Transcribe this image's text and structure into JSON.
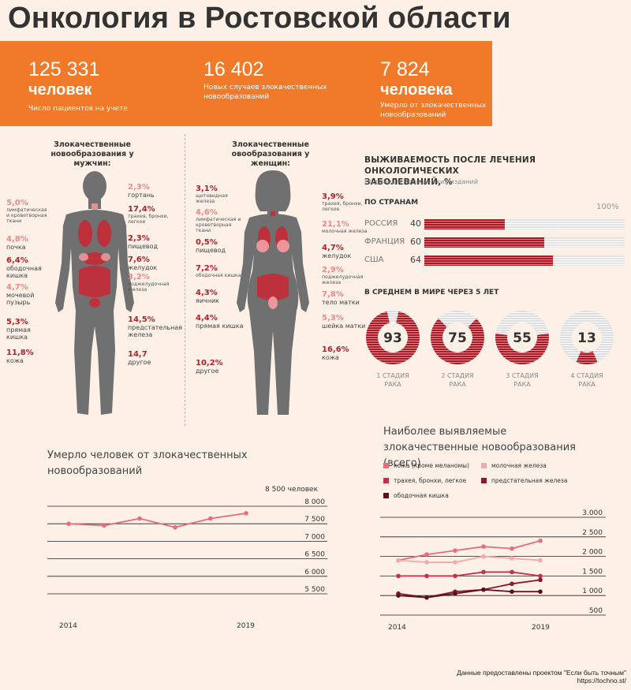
{
  "title": "Онкология в Ростовской области",
  "banner": {
    "stats": [
      {
        "number": "125 331",
        "unit": "человек",
        "caption": "Число пациентов на учете"
      },
      {
        "number": "16 402",
        "unit": "",
        "caption": "Новых случаев злокачественных новообразований"
      },
      {
        "number": "7 824",
        "unit": "человека",
        "caption": "Умерло от злокачественных новообразований"
      }
    ]
  },
  "men": {
    "heading": "Злокачественные новообразования у мужчин:",
    "left": [
      {
        "pct": "5,0%",
        "label": "лимфатическая и кроветворная ткани",
        "tone": "light"
      },
      {
        "pct": "4,8%",
        "label": "почка",
        "tone": "light"
      },
      {
        "pct": "6,4%",
        "label": "ободочная кишка",
        "tone": "dark"
      },
      {
        "pct": "4,7%",
        "label": "мочевой пузырь",
        "tone": "light"
      },
      {
        "pct": "5,3%",
        "label": "прямая кишка",
        "tone": "dark"
      },
      {
        "pct": "11,8%",
        "label": "кожа",
        "tone": "dark"
      }
    ],
    "right": [
      {
        "pct": "2,3%",
        "label": "гортань",
        "tone": "light"
      },
      {
        "pct": "17,4%",
        "label": "трахея, бронхи, легкое",
        "tone": "dark"
      },
      {
        "pct": "2,3%",
        "label": "пищевод",
        "tone": "dark"
      },
      {
        "pct": "7,6%",
        "label": "желудок",
        "tone": "dark"
      },
      {
        "pct": "3,2%",
        "label": "поджелудочная железа",
        "tone": "light"
      },
      {
        "pct": "14,5%",
        "label": "предстательная железа",
        "tone": "dark"
      },
      {
        "pct": "14,7",
        "label": "другое",
        "tone": "dark"
      }
    ]
  },
  "women": {
    "heading": "Злокачественные овообразования у женщин:",
    "left": [
      {
        "pct": "3,1%",
        "label": "щитовидная железа",
        "tone": "dark"
      },
      {
        "pct": "4,6%",
        "label": "лимфатическая и кроветворная ткани",
        "tone": "light"
      },
      {
        "pct": "0,5%",
        "label": "пищевод",
        "tone": "dark"
      },
      {
        "pct": "7,2%",
        "label": "ободочная кишка",
        "tone": "dark"
      },
      {
        "pct": "4,3%",
        "label": "яичник",
        "tone": "dark"
      },
      {
        "pct": "4,4%",
        "label": "прямая кишка",
        "tone": "dark"
      },
      {
        "pct": "10,2%",
        "label": "другое",
        "tone": "dark"
      }
    ],
    "right": [
      {
        "pct": "3,9%",
        "label": "трахея, бронхи, легкое",
        "tone": "dark"
      },
      {
        "pct": "21,1%",
        "label": "молочная железа",
        "tone": "light"
      },
      {
        "pct": "4,7%",
        "label": "желудок",
        "tone": "dark"
      },
      {
        "pct": "2,9%",
        "label": "поджелудочная железа",
        "tone": "light"
      },
      {
        "pct": "7,8%",
        "label": "тело матки",
        "tone": "light"
      },
      {
        "pct": "5,3%",
        "label": "шейка матки",
        "tone": "light"
      },
      {
        "pct": "16,6%",
        "label": "кожа",
        "tone": "dark"
      }
    ]
  },
  "survival": {
    "title_line1": "ВЫЖИВАЕМОСТЬ ПОСЛЕ ЛЕЧЕНИЯ ОНКОЛОГИЧЕСКИХ",
    "title_line2": "ЗАБОЛЕВАНИЙ, %",
    "source": "По данным медицинских изданий",
    "countries_heading": "ПО СТРАНАМ",
    "max_label": "100%",
    "world_heading": "В СРЕДНЕМ В МИРЕ ЧЕРЕЗ 5 ЛЕТ"
  },
  "colors": {
    "orange": "#f07a2a",
    "dark_red": "#a8192a",
    "light_red": "#e27d7d",
    "grey": "#e3e3e3",
    "body": "#707070"
  },
  "chart_data": [
    {
      "type": "bar",
      "title": "ВЫЖИВАЕМОСТЬ ПОСЛЕ ЛЕЧЕНИЯ ОНКОЛОГИЧЕСКИХ ЗАБОЛЕВАНИЙ, % — ПО СТРАНАМ",
      "categories": [
        "РОССИЯ",
        "ФРАНЦИЯ",
        "США"
      ],
      "values": [
        40,
        60,
        64
      ],
      "ylim": [
        0,
        100
      ]
    },
    {
      "type": "pie",
      "title": "В СРЕДНЕМ В МИРЕ ЧЕРЕЗ 5 ЛЕТ",
      "categories": [
        "1 СТАДИЯ РАКА",
        "2 СТАДИЯ РАКА",
        "3 СТАДИЯ РАКА",
        "4 СТАДИЯ РАКА"
      ],
      "values": [
        93,
        75,
        55,
        13
      ],
      "labels": [
        "93",
        "75",
        "55",
        "13"
      ]
    },
    {
      "type": "line",
      "title": "Умерло человек от злокачественных новообразований",
      "ylabel": "8 500 человек",
      "x": [
        2014,
        2015,
        2016,
        2017,
        2018,
        2019
      ],
      "x_tick_labels": [
        "2014",
        "2019"
      ],
      "values": [
        7500,
        7450,
        7650,
        7400,
        7650,
        7800
      ],
      "ylim": [
        5500,
        8000
      ],
      "y_tick_labels": [
        "8 000",
        "7 500",
        "7 000",
        "6 500",
        "6 000",
        "5 500"
      ]
    },
    {
      "type": "line",
      "title": "Наиболее выявляемые злокачественные новообразования (всего)",
      "x": [
        2014,
        2015,
        2016,
        2017,
        2018,
        2019
      ],
      "x_tick_labels": [
        "2014",
        "2019"
      ],
      "ylim": [
        500,
        3000
      ],
      "y_tick_labels": [
        "3.000",
        "2 500",
        "2 000",
        "1 500",
        "1 000",
        "500"
      ],
      "series": [
        {
          "name": "кожа (кроме меланомы)",
          "color": "#e86d7c",
          "values": [
            1900,
            2050,
            2150,
            2250,
            2200,
            2400
          ]
        },
        {
          "name": "молочная железа",
          "color": "#f3aaaa",
          "values": [
            1900,
            1850,
            1850,
            2000,
            1950,
            1900
          ]
        },
        {
          "name": "трахея, бронхи, легкое",
          "color": "#c2334a",
          "values": [
            1500,
            1500,
            1500,
            1600,
            1600,
            1500
          ]
        },
        {
          "name": "предстательная железа",
          "color": "#871a2e",
          "values": [
            1050,
            950,
            1100,
            1150,
            1300,
            1400
          ]
        },
        {
          "name": "ободочная кишка",
          "color": "#5a0f1e",
          "values": [
            1000,
            950,
            1050,
            1150,
            1100,
            1100
          ]
        }
      ]
    }
  ],
  "footer": {
    "line1": "Данные предоставлены проектом \"Если быть точным\"",
    "line2": "https://tochno.st/"
  }
}
